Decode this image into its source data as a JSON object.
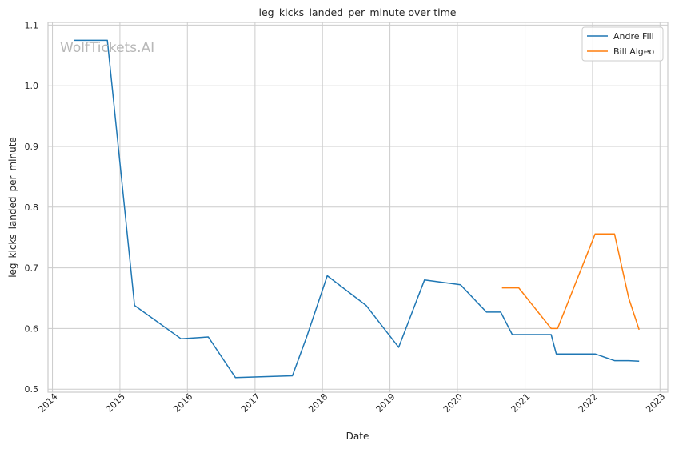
{
  "chart_data": {
    "type": "line",
    "title": "leg_kicks_landed_per_minute over time",
    "xlabel": "Date",
    "ylabel": "leg_kicks_landed_per_minute",
    "watermark": "WolfTickets.AI",
    "xlim": [
      "2013-12-08",
      "2023-02-12"
    ],
    "ylim": [
      0.495,
      1.1045
    ],
    "x_ticks": [
      "2014",
      "2015",
      "2016",
      "2017",
      "2018",
      "2019",
      "2020",
      "2021",
      "2022",
      "2023"
    ],
    "y_ticks": [
      "0.5",
      "0.6",
      "0.7",
      "0.8",
      "0.9",
      "1.0",
      "1.1"
    ],
    "grid": true,
    "legend_position": "top-right",
    "series": [
      {
        "name": "Andre Fili",
        "color": "#1f77b4",
        "points": [
          [
            "2014-04-26",
            1.075
          ],
          [
            "2014-10-25",
            1.075
          ],
          [
            "2015-03-21",
            0.638
          ],
          [
            "2015-11-28",
            0.583
          ],
          [
            "2016-04-23",
            0.586
          ],
          [
            "2016-09-17",
            0.519
          ],
          [
            "2017-07-22",
            0.522
          ],
          [
            "2017-10-07",
            0.586
          ],
          [
            "2018-01-27",
            0.687
          ],
          [
            "2018-08-25",
            0.638
          ],
          [
            "2019-02-17",
            0.569
          ],
          [
            "2019-07-07",
            0.68
          ],
          [
            "2020-01-18",
            0.672
          ],
          [
            "2020-06-06",
            0.627
          ],
          [
            "2020-08-22",
            0.627
          ],
          [
            "2020-10-24",
            0.59
          ],
          [
            "2021-05-22",
            0.59
          ],
          [
            "2021-06-19",
            0.558
          ],
          [
            "2022-01-15",
            0.558
          ],
          [
            "2022-04-30",
            0.547
          ],
          [
            "2022-07-16",
            0.547
          ],
          [
            "2022-09-10",
            0.546
          ]
        ]
      },
      {
        "name": "Bill Algeo",
        "color": "#ff7f0e",
        "points": [
          [
            "2020-08-29",
            0.667
          ],
          [
            "2020-11-28",
            0.667
          ],
          [
            "2021-05-22",
            0.6
          ],
          [
            "2021-06-26",
            0.6
          ],
          [
            "2022-01-15",
            0.756
          ],
          [
            "2022-04-30",
            0.756
          ],
          [
            "2022-07-16",
            0.65
          ],
          [
            "2022-09-10",
            0.598
          ]
        ]
      }
    ]
  }
}
